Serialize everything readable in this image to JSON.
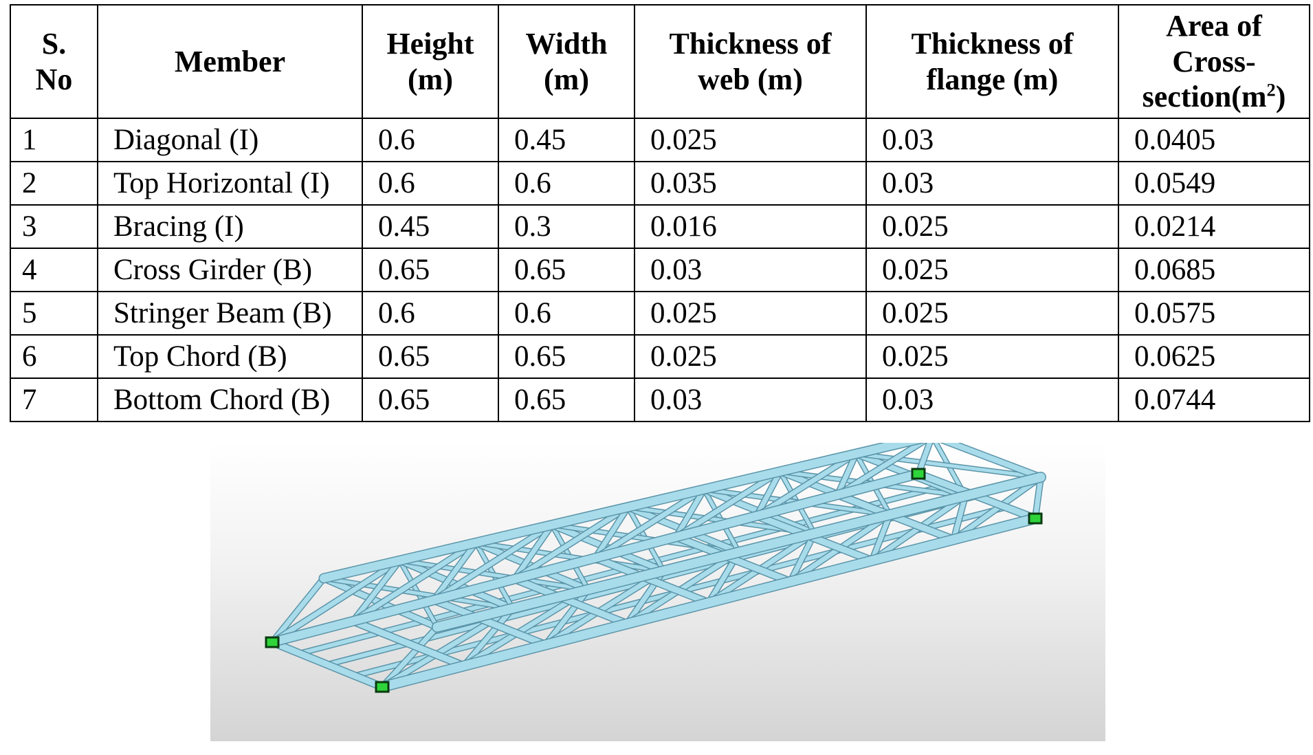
{
  "table": {
    "headers": [
      {
        "lines": [
          "S.",
          "No"
        ]
      },
      {
        "lines": [
          "Member"
        ]
      },
      {
        "lines": [
          "Height",
          "(m)"
        ]
      },
      {
        "lines": [
          "Width",
          "(m)"
        ]
      },
      {
        "lines": [
          "Thickness of",
          "web (m)"
        ]
      },
      {
        "lines": [
          "Thickness of",
          "flange (m)"
        ]
      },
      {
        "lines": [
          "Area of",
          "Cross-",
          "section(m"
        ],
        "sup": "2",
        "tail": ")"
      }
    ],
    "rows": [
      [
        "1",
        "Diagonal (I)",
        "0.6",
        "0.45",
        "0.025",
        "0.03",
        "0.0405"
      ],
      [
        "2",
        "Top Horizontal (I)",
        "0.6",
        "0.6",
        "0.035",
        "0.03",
        "0.0549"
      ],
      [
        "3",
        "Bracing (I)",
        "0.45",
        "0.3",
        "0.016",
        "0.025",
        "0.0214"
      ],
      [
        "4",
        "Cross Girder (B)",
        "0.65",
        "0.65",
        "0.03",
        "0.025",
        "0.0685"
      ],
      [
        "5",
        "Stringer Beam (B)",
        "0.6",
        "0.6",
        "0.025",
        "0.025",
        "0.0575"
      ],
      [
        "6",
        "Top Chord (B)",
        "0.65",
        "0.65",
        "0.025",
        "0.025",
        "0.0625"
      ],
      [
        "7",
        "Bottom Chord (B)",
        "0.65",
        "0.65",
        "0.03",
        "0.03",
        "0.0744"
      ]
    ]
  },
  "model": {
    "member_color": "#a9dceb",
    "edge_color": "#5a94a8",
    "support_color": "#2fd43a"
  }
}
